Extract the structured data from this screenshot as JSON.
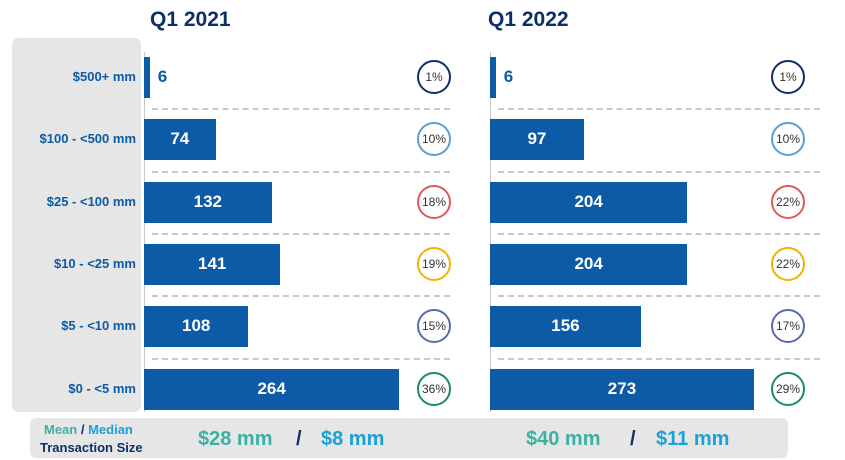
{
  "colors": {
    "bar": "#0d5aa6",
    "title": "#0d2f66",
    "mean": "#3bb0a4",
    "median": "#1aa0d8",
    "circle_navy": "#0d2f66",
    "circle_lightblue": "#5a9fd4",
    "circle_red": "#e05a5a",
    "circle_yellow": "#f0b400",
    "circle_purple": "#5a6ab0",
    "circle_teal": "#1a8a6a"
  },
  "chart_data": {
    "type": "bar",
    "orientation": "horizontal",
    "categories": [
      "$500+ mm",
      "$100 - <500 mm",
      "$25 - <100 mm",
      "$10 - <25 mm",
      "$5 - <10 mm",
      "$0 - <5 mm"
    ],
    "series": [
      {
        "name": "Q1 2021",
        "values": [
          6,
          74,
          132,
          141,
          108,
          264
        ],
        "value_labels": [
          "6",
          "74",
          "132",
          "141",
          "108",
          "264"
        ],
        "shares": [
          "1%",
          "10%",
          "18%",
          "19%",
          "15%",
          "36%"
        ],
        "circle_colors": [
          "circle_navy",
          "circle_lightblue",
          "circle_red",
          "circle_yellow",
          "circle_purple",
          "circle_teal"
        ]
      },
      {
        "name": "Q1 2022",
        "values": [
          6,
          97,
          204,
          204,
          156,
          273
        ],
        "value_labels": [
          "6",
          "97",
          "204",
          "204",
          "156",
          "273"
        ],
        "shares": [
          "1%",
          "10%",
          "22%",
          "22%",
          "17%",
          "29%"
        ],
        "circle_colors": [
          "circle_navy",
          "circle_lightblue",
          "circle_red",
          "circle_yellow",
          "circle_purple",
          "circle_teal"
        ]
      }
    ],
    "xlim": [
      0,
      280
    ],
    "grid": false
  },
  "summary": {
    "label_mean": "Mean",
    "label_slash": " / ",
    "label_median": "Median",
    "label_line2": "Transaction Size",
    "q1_2021": {
      "mean": "$28 mm",
      "sep": "/",
      "median": "$8 mm"
    },
    "q1_2022": {
      "mean": "$40 mm",
      "sep": "/",
      "median": "$11 mm"
    }
  }
}
